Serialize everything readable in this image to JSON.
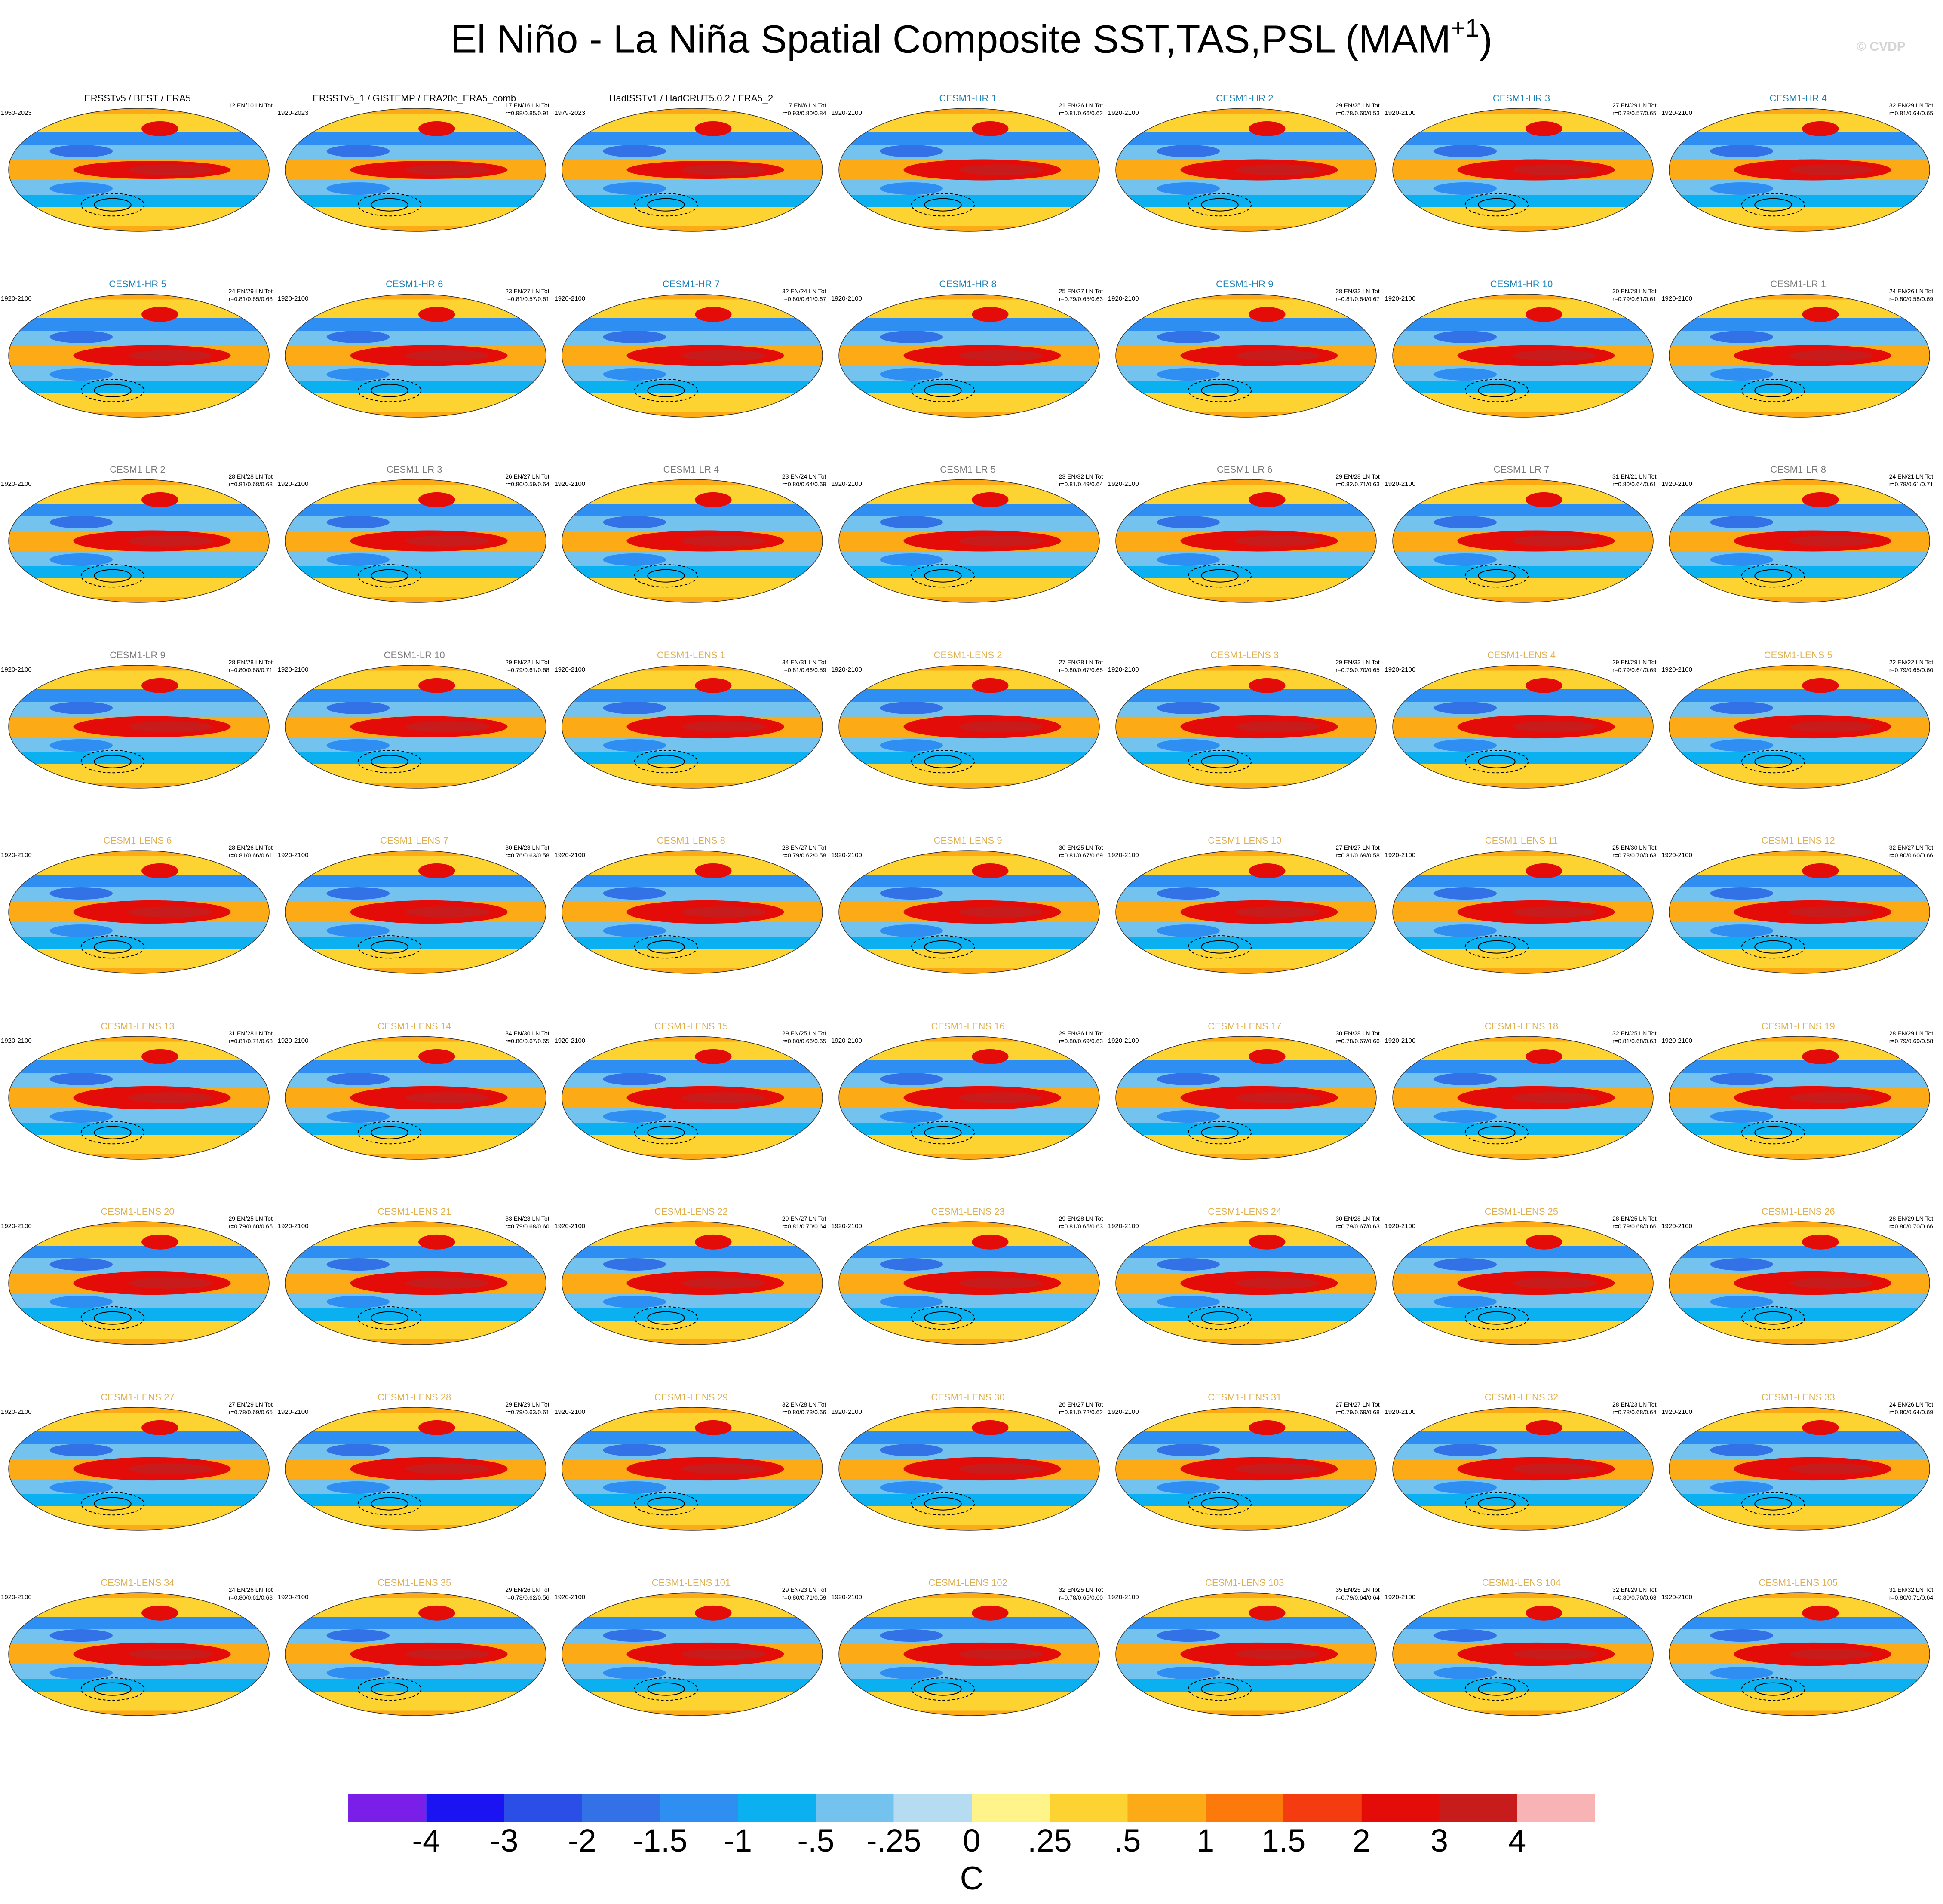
{
  "title_main": "El Niño - La Niña Spatial Composite SST,TAS,PSL (MAM",
  "title_sup": "+1",
  "title_close": ")",
  "copyright": "© CVDP",
  "colors": {
    "obs": "#000000",
    "hr": "#1a7fb5",
    "lr": "#7a7a7a",
    "lens": "#e0b050"
  },
  "chart_data": {
    "type": "heatmap",
    "projection": "Robinson (global map panels)",
    "fields": [
      "SST",
      "TAS",
      "PSL"
    ],
    "season": "MAM+1",
    "units": "C",
    "colorbar": {
      "labels": [
        "-4",
        "-3",
        "-2",
        "-1.5",
        "-1",
        "-.5",
        "-.25",
        "0",
        ".25",
        ".5",
        "1",
        "1.5",
        "2",
        "3",
        "4"
      ],
      "colors": [
        "#7a1fe8",
        "#1b13f2",
        "#2a4ee6",
        "#3272e6",
        "#2f8ef2",
        "#0ab0f0",
        "#74c2ee",
        "#b6dcf2",
        "#fef48a",
        "#fcd330",
        "#fcaa16",
        "#fc7a0c",
        "#f43c10",
        "#e40c08",
        "#c81c1c",
        "#f8b4b4"
      ]
    },
    "panels": [
      {
        "name": "ERSSTv5 / BEST / ERA5",
        "years": "1950-2023",
        "count": "12 EN/10 LN Tot",
        "corr": "",
        "group": "obs"
      },
      {
        "name": "ERSSTv5_1 / GISTEMP / ERA20c_ERA5_comb",
        "years": "1920-2023",
        "count": "17 EN/16 LN Tot",
        "corr": "r=0.98/0.85/0.91",
        "group": "obs"
      },
      {
        "name": "HadISSTv1 / HadCRUT5.0.2 / ERA5_2",
        "years": "1979-2023",
        "count": "7 EN/6 LN Tot",
        "corr": "r=0.93/0.80/0.84",
        "group": "obs"
      },
      {
        "name": "CESM1-HR 1",
        "years": "1920-2100",
        "count": "21 EN/26 LN Tot",
        "corr": "r=0.81/0.66/0.62",
        "group": "hr"
      },
      {
        "name": "CESM1-HR 2",
        "years": "1920-2100",
        "count": "29 EN/25 LN Tot",
        "corr": "r=0.78/0.60/0.53",
        "group": "hr"
      },
      {
        "name": "CESM1-HR 3",
        "years": "1920-2100",
        "count": "27 EN/29 LN Tot",
        "corr": "r=0.78/0.57/0.65",
        "group": "hr"
      },
      {
        "name": "CESM1-HR 4",
        "years": "1920-2100",
        "count": "32 EN/29 LN Tot",
        "corr": "r=0.81/0.64/0.65",
        "group": "hr"
      },
      {
        "name": "CESM1-HR 5",
        "years": "1920-2100",
        "count": "24 EN/29 LN Tot",
        "corr": "r=0.81/0.65/0.68",
        "group": "hr"
      },
      {
        "name": "CESM1-HR 6",
        "years": "1920-2100",
        "count": "23 EN/27 LN Tot",
        "corr": "r=0.81/0.57/0.61",
        "group": "hr"
      },
      {
        "name": "CESM1-HR 7",
        "years": "1920-2100",
        "count": "32 EN/24 LN Tot",
        "corr": "r=0.80/0.61/0.67",
        "group": "hr"
      },
      {
        "name": "CESM1-HR 8",
        "years": "1920-2100",
        "count": "25 EN/27 LN Tot",
        "corr": "r=0.79/0.65/0.63",
        "group": "hr"
      },
      {
        "name": "CESM1-HR 9",
        "years": "1920-2100",
        "count": "28 EN/33 LN Tot",
        "corr": "r=0.81/0.64/0.67",
        "group": "hr"
      },
      {
        "name": "CESM1-HR 10",
        "years": "1920-2100",
        "count": "30 EN/28 LN Tot",
        "corr": "r=0.79/0.61/0.61",
        "group": "hr"
      },
      {
        "name": "CESM1-LR 1",
        "years": "1920-2100",
        "count": "24 EN/26 LN Tot",
        "corr": "r=0.80/0.58/0.69",
        "group": "lr"
      },
      {
        "name": "CESM1-LR 2",
        "years": "1920-2100",
        "count": "28 EN/28 LN Tot",
        "corr": "r=0.81/0.68/0.68",
        "group": "lr"
      },
      {
        "name": "CESM1-LR 3",
        "years": "1920-2100",
        "count": "26 EN/27 LN Tot",
        "corr": "r=0.80/0.59/0.64",
        "group": "lr"
      },
      {
        "name": "CESM1-LR 4",
        "years": "1920-2100",
        "count": "23 EN/24 LN Tot",
        "corr": "r=0.80/0.64/0.69",
        "group": "lr"
      },
      {
        "name": "CESM1-LR 5",
        "years": "1920-2100",
        "count": "23 EN/32 LN Tot",
        "corr": "r=0.81/0.49/0.64",
        "group": "lr"
      },
      {
        "name": "CESM1-LR 6",
        "years": "1920-2100",
        "count": "29 EN/28 LN Tot",
        "corr": "r=0.82/0.71/0.63",
        "group": "lr"
      },
      {
        "name": "CESM1-LR 7",
        "years": "1920-2100",
        "count": "31 EN/21 LN Tot",
        "corr": "r=0.80/0.64/0.61",
        "group": "lr"
      },
      {
        "name": "CESM1-LR 8",
        "years": "1920-2100",
        "count": "24 EN/21 LN Tot",
        "corr": "r=0.78/0.61/0.71",
        "group": "lr"
      },
      {
        "name": "CESM1-LR 9",
        "years": "1920-2100",
        "count": "28 EN/28 LN Tot",
        "corr": "r=0.80/0.68/0.71",
        "group": "lr"
      },
      {
        "name": "CESM1-LR 10",
        "years": "1920-2100",
        "count": "29 EN/22 LN Tot",
        "corr": "r=0.79/0.61/0.68",
        "group": "lr"
      },
      {
        "name": "CESM1-LENS 1",
        "years": "1920-2100",
        "count": "34 EN/31 LN Tot",
        "corr": "r=0.81/0.66/0.59",
        "group": "lens"
      },
      {
        "name": "CESM1-LENS 2",
        "years": "1920-2100",
        "count": "27 EN/28 LN Tot",
        "corr": "r=0.80/0.67/0.65",
        "group": "lens"
      },
      {
        "name": "CESM1-LENS 3",
        "years": "1920-2100",
        "count": "29 EN/33 LN Tot",
        "corr": "r=0.79/0.70/0.65",
        "group": "lens"
      },
      {
        "name": "CESM1-LENS 4",
        "years": "1920-2100",
        "count": "29 EN/29 LN Tot",
        "corr": "r=0.79/0.64/0.69",
        "group": "lens"
      },
      {
        "name": "CESM1-LENS 5",
        "years": "1920-2100",
        "count": "22 EN/22 LN Tot",
        "corr": "r=0.79/0.65/0.60",
        "group": "lens"
      },
      {
        "name": "CESM1-LENS 6",
        "years": "1920-2100",
        "count": "28 EN/26 LN Tot",
        "corr": "r=0.81/0.66/0.61",
        "group": "lens"
      },
      {
        "name": "CESM1-LENS 7",
        "years": "1920-2100",
        "count": "30 EN/23 LN Tot",
        "corr": "r=0.76/0.63/0.58",
        "group": "lens"
      },
      {
        "name": "CESM1-LENS 8",
        "years": "1920-2100",
        "count": "28 EN/27 LN Tot",
        "corr": "r=0.79/0.62/0.58",
        "group": "lens"
      },
      {
        "name": "CESM1-LENS 9",
        "years": "1920-2100",
        "count": "30 EN/25 LN Tot",
        "corr": "r=0.81/0.67/0.69",
        "group": "lens"
      },
      {
        "name": "CESM1-LENS 10",
        "years": "1920-2100",
        "count": "27 EN/27 LN Tot",
        "corr": "r=0.81/0.69/0.58",
        "group": "lens"
      },
      {
        "name": "CESM1-LENS 11",
        "years": "1920-2100",
        "count": "25 EN/30 LN Tot",
        "corr": "r=0.78/0.70/0.63",
        "group": "lens"
      },
      {
        "name": "CESM1-LENS 12",
        "years": "1920-2100",
        "count": "32 EN/27 LN Tot",
        "corr": "r=0.80/0.60/0.66",
        "group": "lens"
      },
      {
        "name": "CESM1-LENS 13",
        "years": "1920-2100",
        "count": "31 EN/28 LN Tot",
        "corr": "r=0.81/0.71/0.68",
        "group": "lens"
      },
      {
        "name": "CESM1-LENS 14",
        "years": "1920-2100",
        "count": "34 EN/30 LN Tot",
        "corr": "r=0.80/0.67/0.65",
        "group": "lens"
      },
      {
        "name": "CESM1-LENS 15",
        "years": "1920-2100",
        "count": "29 EN/25 LN Tot",
        "corr": "r=0.80/0.66/0.65",
        "group": "lens"
      },
      {
        "name": "CESM1-LENS 16",
        "years": "1920-2100",
        "count": "29 EN/36 LN Tot",
        "corr": "r=0.80/0.69/0.63",
        "group": "lens"
      },
      {
        "name": "CESM1-LENS 17",
        "years": "1920-2100",
        "count": "30 EN/28 LN Tot",
        "corr": "r=0.78/0.67/0.66",
        "group": "lens"
      },
      {
        "name": "CESM1-LENS 18",
        "years": "1920-2100",
        "count": "32 EN/25 LN Tot",
        "corr": "r=0.81/0.68/0.63",
        "group": "lens"
      },
      {
        "name": "CESM1-LENS 19",
        "years": "1920-2100",
        "count": "28 EN/29 LN Tot",
        "corr": "r=0.79/0.69/0.58",
        "group": "lens"
      },
      {
        "name": "CESM1-LENS 20",
        "years": "1920-2100",
        "count": "29 EN/25 LN Tot",
        "corr": "r=0.79/0.60/0.65",
        "group": "lens"
      },
      {
        "name": "CESM1-LENS 21",
        "years": "1920-2100",
        "count": "33 EN/23 LN Tot",
        "corr": "r=0.79/0.68/0.60",
        "group": "lens"
      },
      {
        "name": "CESM1-LENS 22",
        "years": "1920-2100",
        "count": "29 EN/27 LN Tot",
        "corr": "r=0.81/0.70/0.64",
        "group": "lens"
      },
      {
        "name": "CESM1-LENS 23",
        "years": "1920-2100",
        "count": "29 EN/28 LN Tot",
        "corr": "r=0.81/0.65/0.63",
        "group": "lens"
      },
      {
        "name": "CESM1-LENS 24",
        "years": "1920-2100",
        "count": "30 EN/28 LN Tot",
        "corr": "r=0.79/0.67/0.63",
        "group": "lens"
      },
      {
        "name": "CESM1-LENS 25",
        "years": "1920-2100",
        "count": "28 EN/25 LN Tot",
        "corr": "r=0.79/0.68/0.66",
        "group": "lens"
      },
      {
        "name": "CESM1-LENS 26",
        "years": "1920-2100",
        "count": "28 EN/29 LN Tot",
        "corr": "r=0.80/0.70/0.66",
        "group": "lens"
      },
      {
        "name": "CESM1-LENS 27",
        "years": "1920-2100",
        "count": "27 EN/29 LN Tot",
        "corr": "r=0.78/0.69/0.65",
        "group": "lens"
      },
      {
        "name": "CESM1-LENS 28",
        "years": "1920-2100",
        "count": "29 EN/29 LN Tot",
        "corr": "r=0.79/0.63/0.61",
        "group": "lens"
      },
      {
        "name": "CESM1-LENS 29",
        "years": "1920-2100",
        "count": "32 EN/28 LN Tot",
        "corr": "r=0.80/0.73/0.66",
        "group": "lens"
      },
      {
        "name": "CESM1-LENS 30",
        "years": "1920-2100",
        "count": "26 EN/27 LN Tot",
        "corr": "r=0.81/0.72/0.62",
        "group": "lens"
      },
      {
        "name": "CESM1-LENS 31",
        "years": "1920-2100",
        "count": "27 EN/27 LN Tot",
        "corr": "r=0.79/0.69/0.68",
        "group": "lens"
      },
      {
        "name": "CESM1-LENS 32",
        "years": "1920-2100",
        "count": "28 EN/23 LN Tot",
        "corr": "r=0.78/0.68/0.64",
        "group": "lens"
      },
      {
        "name": "CESM1-LENS 33",
        "years": "1920-2100",
        "count": "24 EN/26 LN Tot",
        "corr": "r=0.80/0.64/0.69",
        "group": "lens"
      },
      {
        "name": "CESM1-LENS 34",
        "years": "1920-2100",
        "count": "24 EN/26 LN Tot",
        "corr": "r=0.80/0.61/0.68",
        "group": "lens"
      },
      {
        "name": "CESM1-LENS 35",
        "years": "1920-2100",
        "count": "29 EN/26 LN Tot",
        "corr": "r=0.78/0.62/0.56",
        "group": "lens"
      },
      {
        "name": "CESM1-LENS 101",
        "years": "1920-2100",
        "count": "29 EN/23 LN Tot",
        "corr": "r=0.80/0.71/0.59",
        "group": "lens"
      },
      {
        "name": "CESM1-LENS 102",
        "years": "1920-2100",
        "count": "32 EN/25 LN Tot",
        "corr": "r=0.78/0.65/0.60",
        "group": "lens"
      },
      {
        "name": "CESM1-LENS 103",
        "years": "1920-2100",
        "count": "35 EN/25 LN Tot",
        "corr": "r=0.79/0.64/0.64",
        "group": "lens"
      },
      {
        "name": "CESM1-LENS 104",
        "years": "1920-2100",
        "count": "32 EN/29 LN Tot",
        "corr": "r=0.80/0.70/0.63",
        "group": "lens"
      },
      {
        "name": "CESM1-LENS 105",
        "years": "1920-2100",
        "count": "31 EN/32 LN Tot",
        "corr": "r=0.80/0.71/0.64",
        "group": "lens"
      }
    ]
  }
}
